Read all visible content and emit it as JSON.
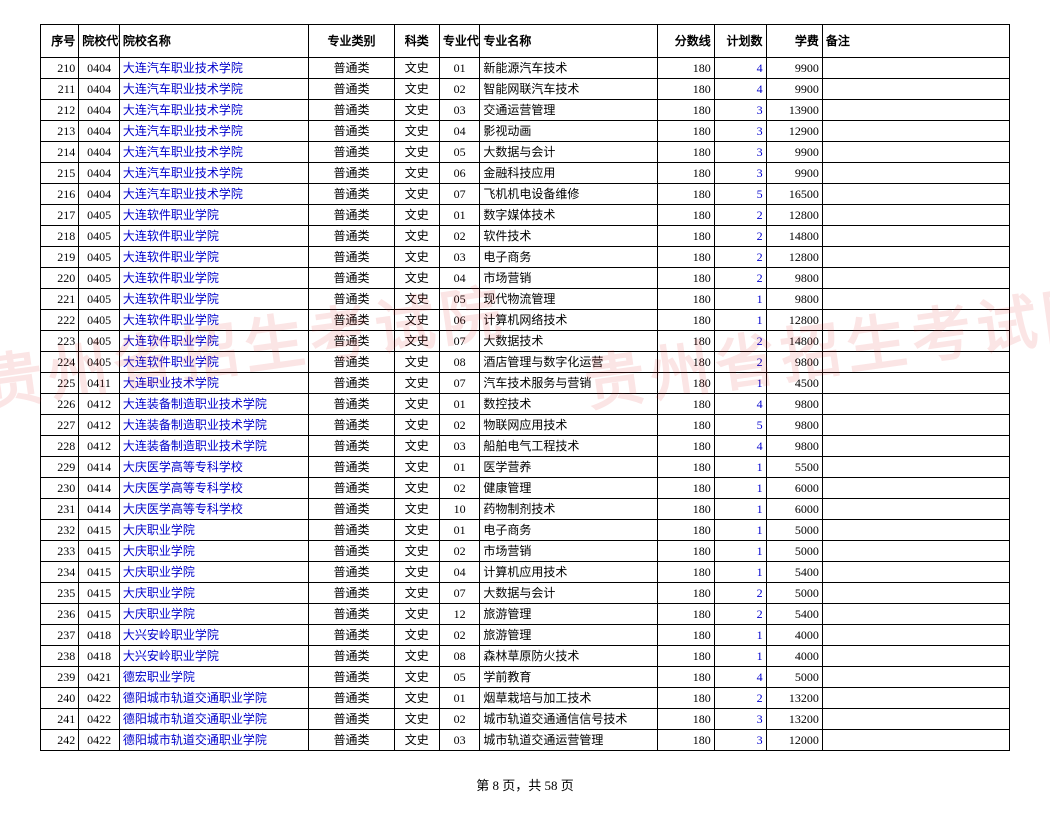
{
  "columns": [
    "序号",
    "院校代码",
    "院校名称",
    "专业类别",
    "科类",
    "专业代码",
    "专业名称",
    "分数线",
    "计划数",
    "学费",
    "备注"
  ],
  "rows": [
    [
      "210",
      "0404",
      "大连汽车职业技术学院",
      "普通类",
      "文史",
      "01",
      "新能源汽车技术",
      "180",
      "4",
      "9900",
      ""
    ],
    [
      "211",
      "0404",
      "大连汽车职业技术学院",
      "普通类",
      "文史",
      "02",
      "智能网联汽车技术",
      "180",
      "4",
      "9900",
      ""
    ],
    [
      "212",
      "0404",
      "大连汽车职业技术学院",
      "普通类",
      "文史",
      "03",
      "交通运营管理",
      "180",
      "3",
      "13900",
      ""
    ],
    [
      "213",
      "0404",
      "大连汽车职业技术学院",
      "普通类",
      "文史",
      "04",
      "影视动画",
      "180",
      "3",
      "12900",
      ""
    ],
    [
      "214",
      "0404",
      "大连汽车职业技术学院",
      "普通类",
      "文史",
      "05",
      "大数据与会计",
      "180",
      "3",
      "9900",
      ""
    ],
    [
      "215",
      "0404",
      "大连汽车职业技术学院",
      "普通类",
      "文史",
      "06",
      "金融科技应用",
      "180",
      "3",
      "9900",
      ""
    ],
    [
      "216",
      "0404",
      "大连汽车职业技术学院",
      "普通类",
      "文史",
      "07",
      "飞机机电设备维修",
      "180",
      "5",
      "16500",
      ""
    ],
    [
      "217",
      "0405",
      "大连软件职业学院",
      "普通类",
      "文史",
      "01",
      "数字媒体技术",
      "180",
      "2",
      "12800",
      ""
    ],
    [
      "218",
      "0405",
      "大连软件职业学院",
      "普通类",
      "文史",
      "02",
      "软件技术",
      "180",
      "2",
      "14800",
      ""
    ],
    [
      "219",
      "0405",
      "大连软件职业学院",
      "普通类",
      "文史",
      "03",
      "电子商务",
      "180",
      "2",
      "12800",
      ""
    ],
    [
      "220",
      "0405",
      "大连软件职业学院",
      "普通类",
      "文史",
      "04",
      "市场营销",
      "180",
      "2",
      "9800",
      ""
    ],
    [
      "221",
      "0405",
      "大连软件职业学院",
      "普通类",
      "文史",
      "05",
      "现代物流管理",
      "180",
      "1",
      "9800",
      ""
    ],
    [
      "222",
      "0405",
      "大连软件职业学院",
      "普通类",
      "文史",
      "06",
      "计算机网络技术",
      "180",
      "1",
      "12800",
      ""
    ],
    [
      "223",
      "0405",
      "大连软件职业学院",
      "普通类",
      "文史",
      "07",
      "大数据技术",
      "180",
      "2",
      "14800",
      ""
    ],
    [
      "224",
      "0405",
      "大连软件职业学院",
      "普通类",
      "文史",
      "08",
      "酒店管理与数字化运营",
      "180",
      "2",
      "9800",
      ""
    ],
    [
      "225",
      "0411",
      "大连职业技术学院",
      "普通类",
      "文史",
      "07",
      "汽车技术服务与营销",
      "180",
      "1",
      "4500",
      ""
    ],
    [
      "226",
      "0412",
      "大连装备制造职业技术学院",
      "普通类",
      "文史",
      "01",
      "数控技术",
      "180",
      "4",
      "9800",
      ""
    ],
    [
      "227",
      "0412",
      "大连装备制造职业技术学院",
      "普通类",
      "文史",
      "02",
      "物联网应用技术",
      "180",
      "5",
      "9800",
      ""
    ],
    [
      "228",
      "0412",
      "大连装备制造职业技术学院",
      "普通类",
      "文史",
      "03",
      "船舶电气工程技术",
      "180",
      "4",
      "9800",
      ""
    ],
    [
      "229",
      "0414",
      "大庆医学高等专科学校",
      "普通类",
      "文史",
      "01",
      "医学营养",
      "180",
      "1",
      "5500",
      ""
    ],
    [
      "230",
      "0414",
      "大庆医学高等专科学校",
      "普通类",
      "文史",
      "02",
      "健康管理",
      "180",
      "1",
      "6000",
      ""
    ],
    [
      "231",
      "0414",
      "大庆医学高等专科学校",
      "普通类",
      "文史",
      "10",
      "药物制剂技术",
      "180",
      "1",
      "6000",
      ""
    ],
    [
      "232",
      "0415",
      "大庆职业学院",
      "普通类",
      "文史",
      "01",
      "电子商务",
      "180",
      "1",
      "5000",
      ""
    ],
    [
      "233",
      "0415",
      "大庆职业学院",
      "普通类",
      "文史",
      "02",
      "市场营销",
      "180",
      "1",
      "5000",
      ""
    ],
    [
      "234",
      "0415",
      "大庆职业学院",
      "普通类",
      "文史",
      "04",
      "计算机应用技术",
      "180",
      "1",
      "5400",
      ""
    ],
    [
      "235",
      "0415",
      "大庆职业学院",
      "普通类",
      "文史",
      "07",
      "大数据与会计",
      "180",
      "2",
      "5000",
      ""
    ],
    [
      "236",
      "0415",
      "大庆职业学院",
      "普通类",
      "文史",
      "12",
      "旅游管理",
      "180",
      "2",
      "5400",
      ""
    ],
    [
      "237",
      "0418",
      "大兴安岭职业学院",
      "普通类",
      "文史",
      "02",
      "旅游管理",
      "180",
      "1",
      "4000",
      ""
    ],
    [
      "238",
      "0418",
      "大兴安岭职业学院",
      "普通类",
      "文史",
      "08",
      "森林草原防火技术",
      "180",
      "1",
      "4000",
      ""
    ],
    [
      "239",
      "0421",
      "德宏职业学院",
      "普通类",
      "文史",
      "05",
      "学前教育",
      "180",
      "4",
      "5000",
      ""
    ],
    [
      "240",
      "0422",
      "德阳城市轨道交通职业学院",
      "普通类",
      "文史",
      "01",
      "烟草栽培与加工技术",
      "180",
      "2",
      "13200",
      ""
    ],
    [
      "241",
      "0422",
      "德阳城市轨道交通职业学院",
      "普通类",
      "文史",
      "02",
      "城市轨道交通通信信号技术",
      "180",
      "3",
      "13200",
      ""
    ],
    [
      "242",
      "0422",
      "德阳城市轨道交通职业学院",
      "普通类",
      "文史",
      "03",
      "城市轨道交通运营管理",
      "180",
      "3",
      "12000",
      ""
    ]
  ],
  "pager": {
    "current": "8",
    "total": "58",
    "prefix": "第 ",
    "mid": " 页，共 ",
    "suffix": " 页"
  },
  "watermark": "贵州省招生考试院"
}
